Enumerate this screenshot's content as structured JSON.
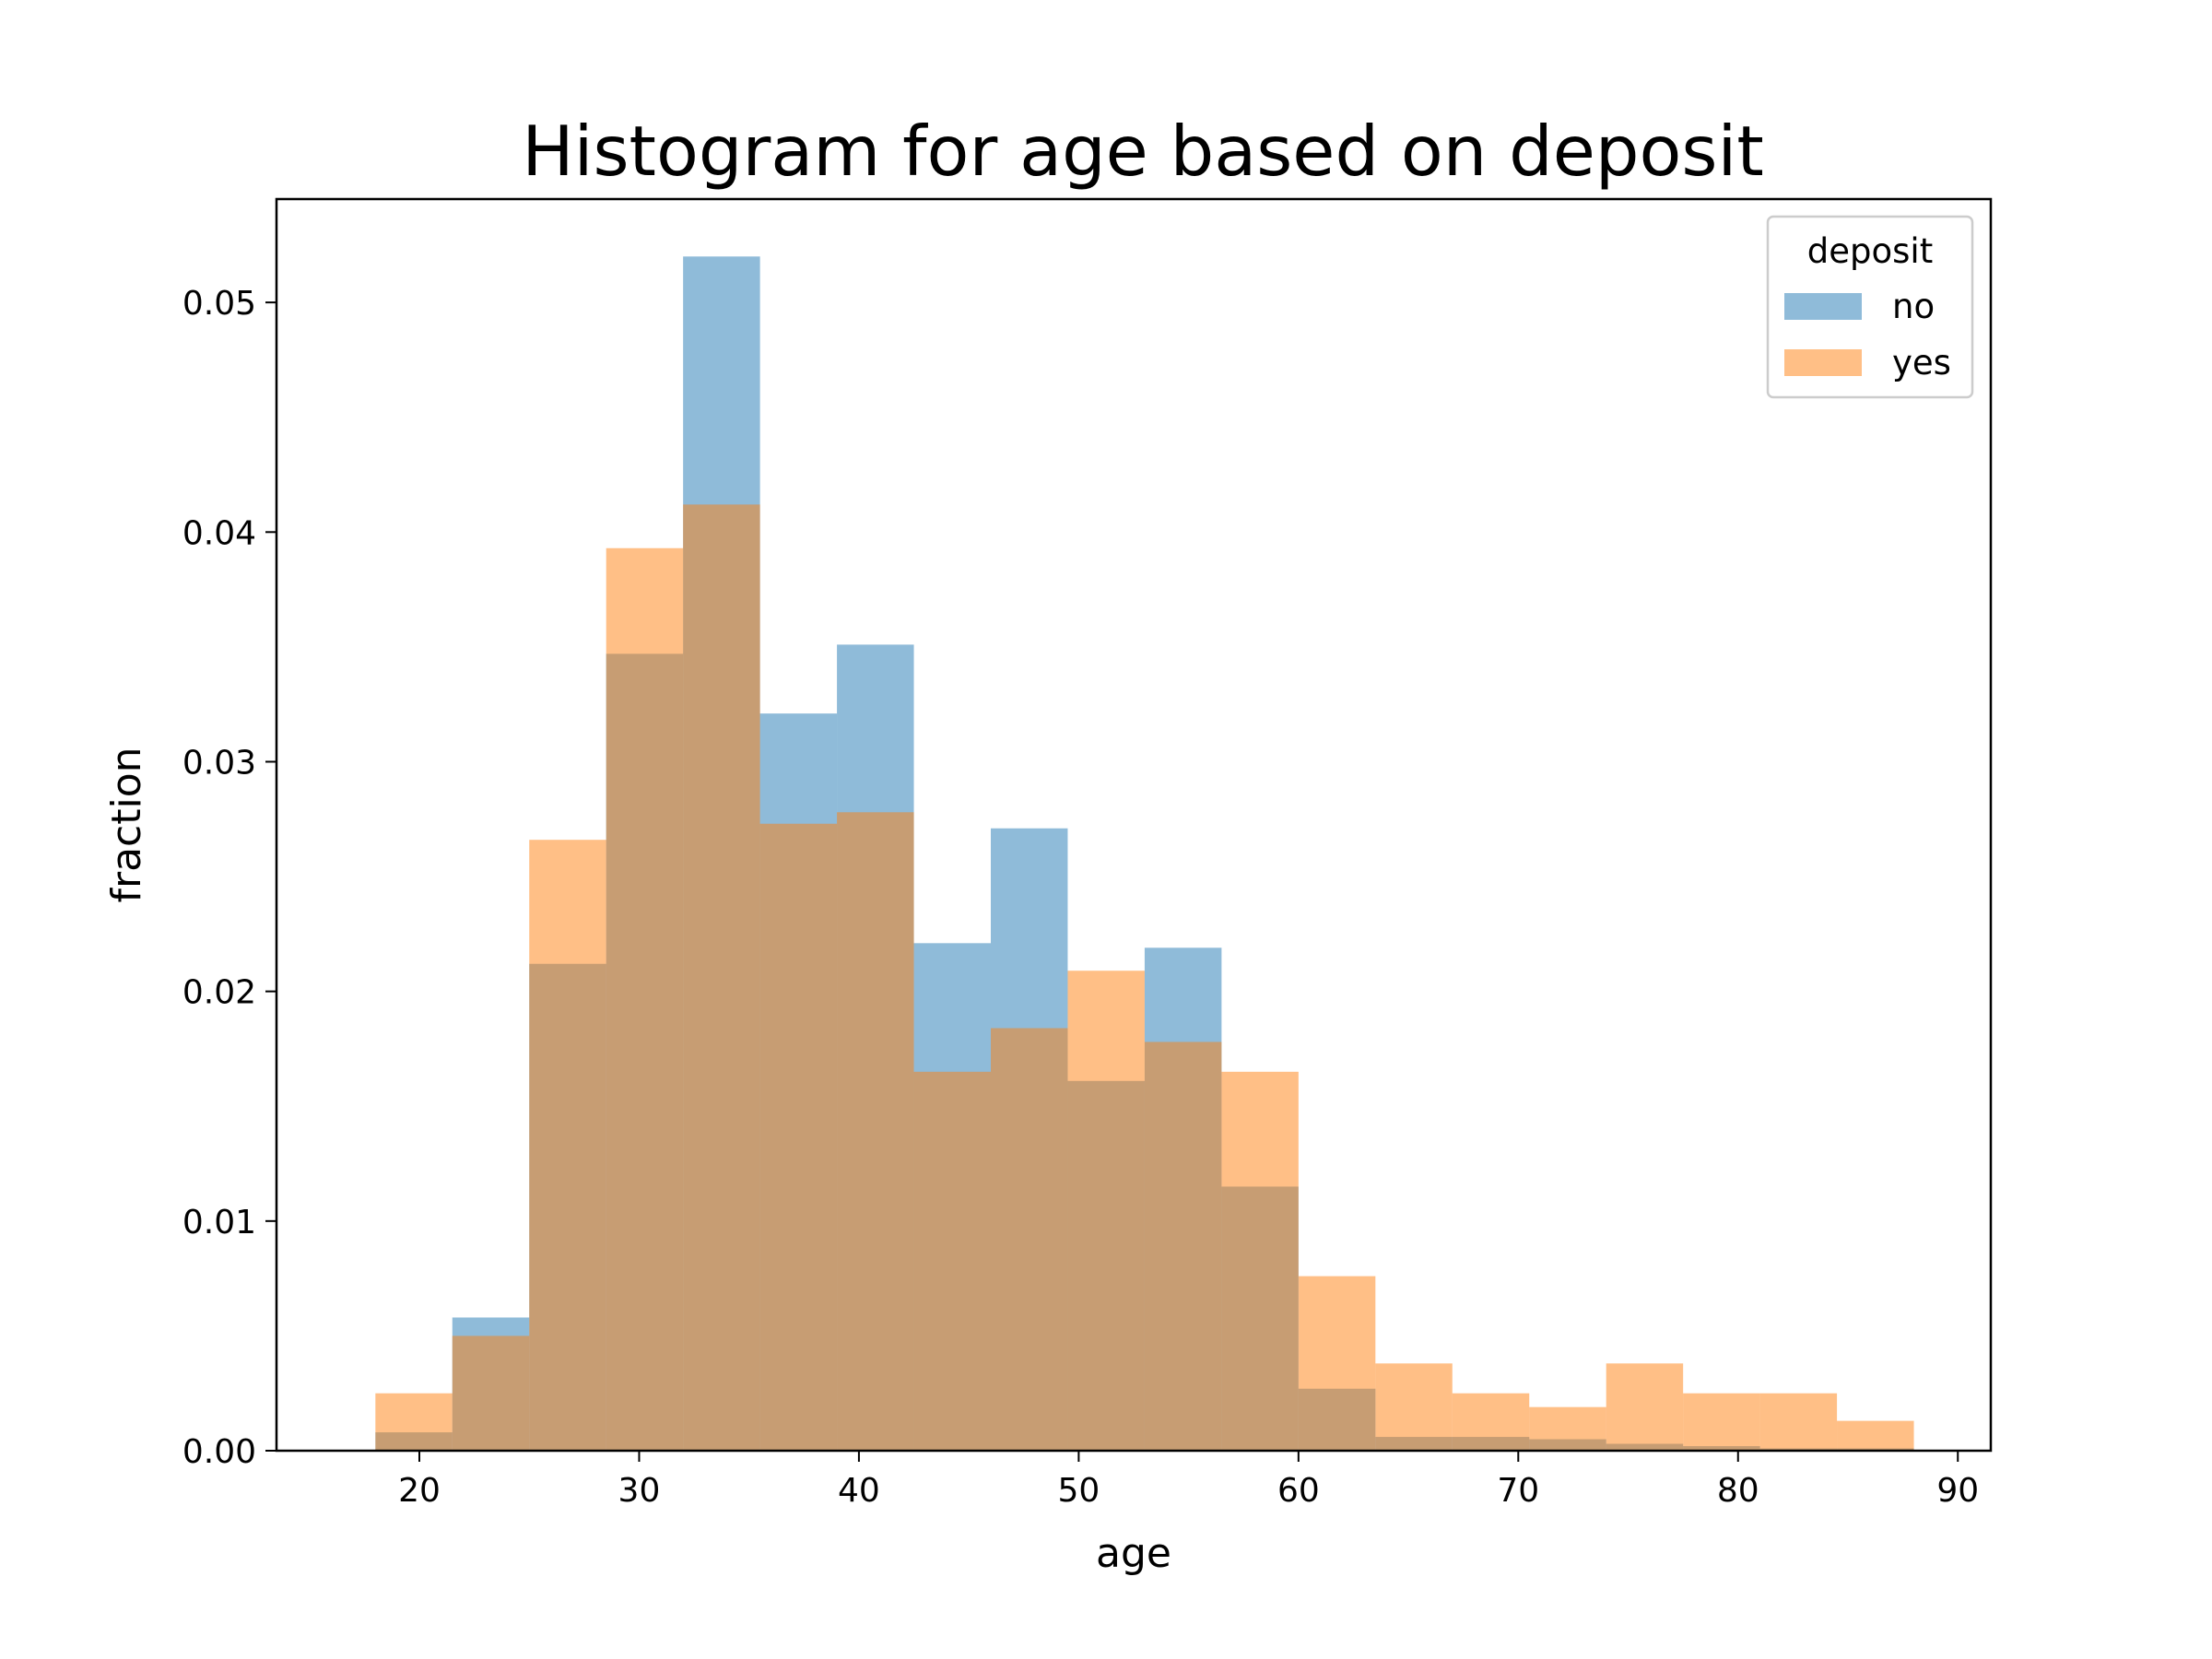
{
  "chart_data": {
    "type": "bar",
    "title": "Histogram for age based on deposit",
    "xlabel": "age",
    "ylabel": "fraction",
    "xlim": [
      13.5,
      91.5
    ],
    "ylim": [
      0,
      0.0545
    ],
    "x_ticks": [
      20,
      30,
      40,
      50,
      60,
      70,
      80,
      90
    ],
    "y_ticks": [
      0.0,
      0.01,
      0.02,
      0.03,
      0.04,
      0.05
    ],
    "y_tick_labels": [
      "0.00",
      "0.01",
      "0.02",
      "0.03",
      "0.04",
      "0.05"
    ],
    "grid": false,
    "legend": {
      "title": "deposit",
      "placement": "top-right"
    },
    "bin_edges": [
      18,
      21.5,
      25,
      28.5,
      32,
      35.5,
      39,
      42.5,
      46,
      49.5,
      53,
      56.5,
      60,
      63.5,
      67,
      70.5,
      74,
      77.5,
      81,
      84.5,
      88
    ],
    "series": [
      {
        "name": "no",
        "color": "#1f77b4",
        "values": [
          0.0008,
          0.0058,
          0.0212,
          0.0347,
          0.052,
          0.0321,
          0.0351,
          0.0221,
          0.0271,
          0.0161,
          0.0219,
          0.0115,
          0.0027,
          0.0006,
          0.0006,
          0.0005,
          0.0003,
          0.0002,
          0.0001,
          0.0001
        ]
      },
      {
        "name": "yes",
        "color": "#ff7f0e",
        "values": [
          0.0025,
          0.005,
          0.0266,
          0.0393,
          0.0412,
          0.0273,
          0.0278,
          0.0165,
          0.0184,
          0.0209,
          0.0178,
          0.0165,
          0.0076,
          0.0038,
          0.0025,
          0.0019,
          0.0038,
          0.0025,
          0.0025,
          0.0013
        ]
      }
    ]
  }
}
